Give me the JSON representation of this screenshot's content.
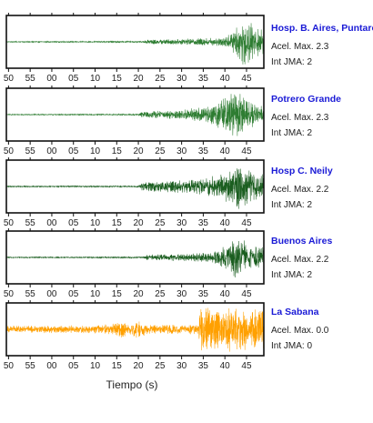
{
  "chart_data": {
    "type": "line",
    "xlabel": "Tiempo (s)",
    "x_ticks": [
      "50",
      "55",
      "00",
      "05",
      "10",
      "15",
      "20",
      "25",
      "30",
      "35",
      "40",
      "45"
    ],
    "grid": false,
    "panels": [
      {
        "station": "Hosp. B. Aires, Puntare",
        "accel": "Acel. Max. 2.3",
        "intensity": "Int JMA: 2",
        "color": "#2e7d32",
        "onset_x": 22,
        "peak_x": 44,
        "envelope": [
          [
            -9,
            0.02
          ],
          [
            21,
            0.03
          ],
          [
            22,
            0.1
          ],
          [
            30,
            0.12
          ],
          [
            38,
            0.18
          ],
          [
            41,
            0.3
          ],
          [
            43,
            0.7
          ],
          [
            44,
            1.0
          ],
          [
            45.5,
            0.85
          ],
          [
            46.5,
            0.75
          ],
          [
            48,
            0.55
          ]
        ]
      },
      {
        "station": "Potrero Grande",
        "accel": "Acel. Max. 2.3",
        "intensity": "Int JMA: 2",
        "color": "#2e7d32",
        "onset_x": 20,
        "peak_x": 42,
        "envelope": [
          [
            -9,
            0.02
          ],
          [
            20,
            0.03
          ],
          [
            21,
            0.14
          ],
          [
            30,
            0.2
          ],
          [
            36,
            0.35
          ],
          [
            40,
            0.75
          ],
          [
            42,
            1.0
          ],
          [
            44,
            0.8
          ],
          [
            46,
            0.55
          ],
          [
            48,
            0.4
          ]
        ]
      },
      {
        "station": "Hosp C. Neily",
        "accel": "Acel. Max. 2.2",
        "intensity": "Int JMA: 2",
        "color": "#1b5e20",
        "onset_x": 20,
        "peak_x": 43,
        "envelope": [
          [
            -9,
            0.02
          ],
          [
            20,
            0.03
          ],
          [
            21,
            0.2
          ],
          [
            28,
            0.25
          ],
          [
            35,
            0.35
          ],
          [
            40,
            0.6
          ],
          [
            43,
            1.0
          ],
          [
            45,
            0.75
          ],
          [
            48,
            0.5
          ]
        ]
      },
      {
        "station": "Buenos Aires",
        "accel": "Acel. Max. 2.2",
        "intensity": "Int JMA: 2",
        "color": "#1b5e20",
        "onset_x": 21,
        "peak_x": 43,
        "envelope": [
          [
            -9,
            0.02
          ],
          [
            21,
            0.03
          ],
          [
            22,
            0.12
          ],
          [
            30,
            0.15
          ],
          [
            37,
            0.22
          ],
          [
            41,
            0.55
          ],
          [
            43,
            1.0
          ],
          [
            45,
            0.6
          ],
          [
            48,
            0.45
          ]
        ]
      },
      {
        "station": "La Sabana",
        "accel": "Acel. Max. 0.0",
        "intensity": "Int JMA: 0",
        "color": "#ffa000",
        "onset_x": 34,
        "peak_x": 38,
        "envelope": [
          [
            -9,
            0.15
          ],
          [
            10,
            0.18
          ],
          [
            14,
            0.25
          ],
          [
            16,
            0.35
          ],
          [
            18,
            0.22
          ],
          [
            20,
            0.4
          ],
          [
            22,
            0.2
          ],
          [
            33.8,
            0.2
          ],
          [
            34.2,
            0.85
          ],
          [
            38,
            1.0
          ],
          [
            42,
            0.9
          ],
          [
            48,
            0.85
          ]
        ]
      }
    ],
    "xlim": [
      -10.5,
      49
    ],
    "ylim": [
      -1,
      1
    ]
  }
}
